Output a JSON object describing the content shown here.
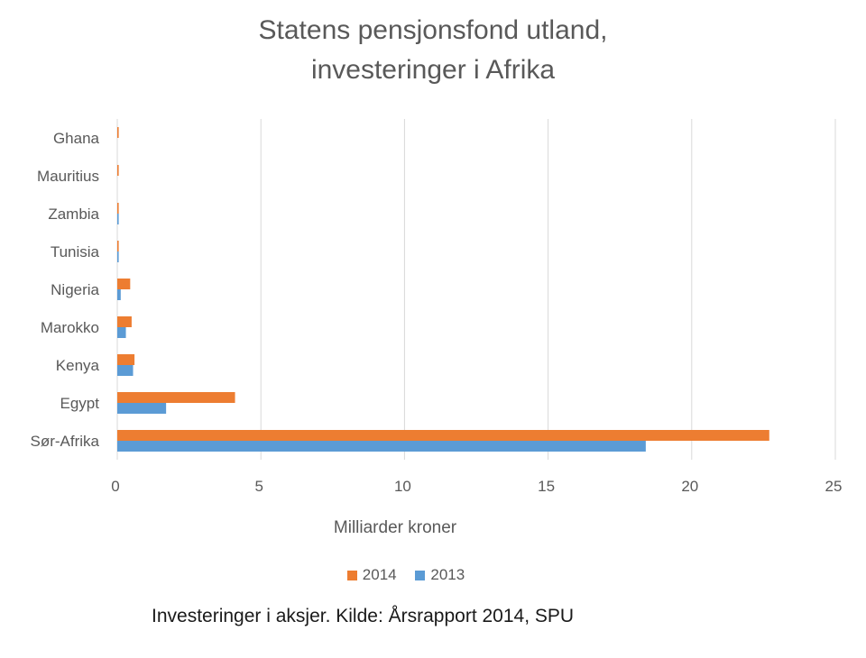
{
  "chart_data": {
    "type": "bar",
    "orientation": "horizontal",
    "title_lines": [
      "Statens pensjonsfond utland,",
      "investeringer i Afrika"
    ],
    "xlabel": "Milliarder kroner",
    "ylabel": "",
    "categories": [
      "Sør-Afrika",
      "Egypt",
      "Kenya",
      "Marokko",
      "Nigeria",
      "Tunisia",
      "Zambia",
      "Mauritius",
      "Ghana"
    ],
    "series": [
      {
        "name": "2014",
        "color": "#ED7D31",
        "values": [
          22.7,
          4.1,
          0.6,
          0.5,
          0.45,
          0.05,
          0.05,
          0.05,
          0.05
        ]
      },
      {
        "name": "2013",
        "color": "#5B9BD5",
        "values": [
          18.4,
          1.7,
          0.55,
          0.3,
          0.12,
          0.05,
          0.05,
          0.0,
          0.0
        ]
      }
    ],
    "xlim": [
      0,
      25
    ],
    "xticks": [
      0,
      5,
      10,
      15,
      20,
      25
    ],
    "grid": true,
    "legend_position": "bottom"
  },
  "caption": "Investeringer i aksjer. Kilde: Årsrapport 2014, SPU"
}
